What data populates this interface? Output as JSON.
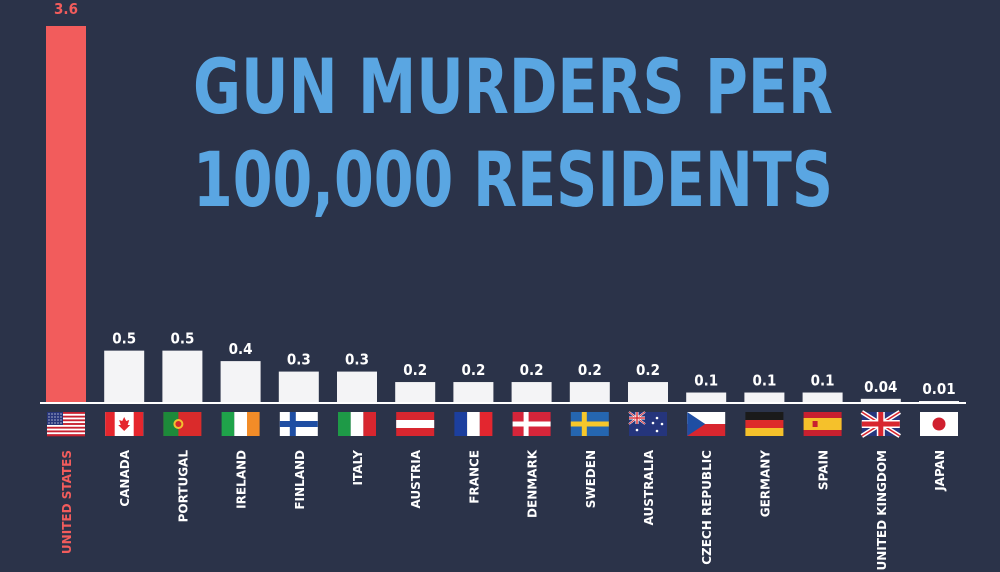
{
  "chart_data": {
    "type": "bar",
    "title_lines": [
      "GUN MURDERS PER",
      "100,000 RESIDENTS"
    ],
    "categories": [
      "UNITED STATES",
      "CANADA",
      "PORTUGAL",
      "IRELAND",
      "FINLAND",
      "ITALY",
      "AUSTRIA",
      "FRANCE",
      "DENMARK",
      "SWEDEN",
      "AUSTRALIA",
      "CZECH REPUBLIC",
      "GERMANY",
      "SPAIN",
      "UNITED KINGDOM",
      "JAPAN"
    ],
    "values": [
      3.6,
      0.5,
      0.5,
      0.4,
      0.3,
      0.3,
      0.2,
      0.2,
      0.2,
      0.2,
      0.2,
      0.1,
      0.1,
      0.1,
      0.04,
      0.01
    ],
    "value_labels": [
      "3.6",
      "0.5",
      "0.5",
      "0.4",
      "0.3",
      "0.3",
      "0.2",
      "0.2",
      "0.2",
      "0.2",
      "0.2",
      "0.1",
      "0.1",
      "0.1",
      "0.04",
      "0.01"
    ],
    "flags": [
      "us-flag-icon",
      "ca-flag-icon",
      "pt-flag-icon",
      "ie-flag-icon",
      "fi-flag-icon",
      "it-flag-icon",
      "at-flag-icon",
      "fr-flag-icon",
      "dk-flag-icon",
      "se-flag-icon",
      "au-flag-icon",
      "cz-flag-icon",
      "de-flag-icon",
      "es-flag-icon",
      "gb-flag-icon",
      "jp-flag-icon"
    ],
    "ylim": [
      0,
      3.6
    ],
    "grid": false,
    "colors": {
      "background": "#2b3349",
      "highlight": "#f25c5c",
      "bar": "#f4f4f6",
      "label": "#ffffff",
      "title": "#5aa6e2"
    }
  }
}
